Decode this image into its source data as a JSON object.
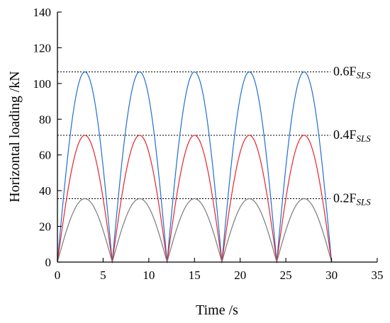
{
  "chart_data": {
    "type": "line",
    "xlabel": "Time /s",
    "ylabel": "Horizontal loading /kN",
    "xlim": [
      0,
      35
    ],
    "ylim": [
      0,
      140
    ],
    "xticks": [
      0,
      5,
      10,
      15,
      20,
      25,
      30,
      35
    ],
    "yticks": [
      0,
      20,
      40,
      60,
      80,
      100,
      120,
      140
    ],
    "grid": false,
    "legend": "none",
    "period_s": 6,
    "duration_s": 30,
    "series": [
      {
        "color": "#1f6fd0",
        "peak": 106.5,
        "shape": "|sin(pi*t/6)|"
      },
      {
        "color": "#e8242b",
        "peak": 71,
        "shape": "|sin(pi*t/6)|"
      },
      {
        "color": "#7a7a7a",
        "peak": 35.5,
        "shape": "|sin(pi*t/6)|"
      }
    ],
    "reference_lines": [
      {
        "y": 106.5,
        "label_main": "0.6F",
        "label_sub": "SLS"
      },
      {
        "y": 71,
        "label_main": "0.4F",
        "label_sub": "SLS"
      },
      {
        "y": 35.5,
        "label_main": "0.2F",
        "label_sub": "SLS"
      }
    ]
  }
}
